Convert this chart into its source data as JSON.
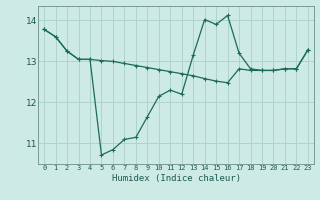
{
  "xlabel": "Humidex (Indice chaleur)",
  "background_color": "#ceeae4",
  "grid_color": "#aed4cc",
  "line_color": "#1a6b5a",
  "spine_color": "#7a9a94",
  "tick_color": "#1a5a50",
  "xlim": [
    -0.5,
    23.5
  ],
  "ylim": [
    10.5,
    14.35
  ],
  "yticks": [
    11,
    12,
    13,
    14
  ],
  "xticks": [
    0,
    1,
    2,
    3,
    4,
    5,
    6,
    7,
    8,
    9,
    10,
    11,
    12,
    13,
    14,
    15,
    16,
    17,
    18,
    19,
    20,
    21,
    22,
    23
  ],
  "line1_x": [
    0,
    1,
    2,
    3,
    4,
    5,
    6,
    7,
    8,
    9,
    10,
    11,
    12,
    13,
    14,
    15,
    16,
    17,
    18,
    19,
    20,
    21,
    22,
    23
  ],
  "line1_y": [
    13.78,
    13.6,
    13.25,
    13.05,
    13.05,
    10.72,
    10.85,
    11.1,
    11.15,
    11.65,
    12.15,
    12.3,
    12.2,
    13.15,
    14.02,
    13.9,
    14.12,
    13.2,
    12.82,
    12.78,
    12.78,
    12.82,
    12.82,
    13.28
  ],
  "line2_x": [
    0,
    1,
    2,
    3,
    4,
    5,
    6,
    7,
    8,
    9,
    10,
    11,
    12,
    13,
    14,
    15,
    16,
    17,
    18,
    19,
    20,
    21,
    22,
    23
  ],
  "line2_y": [
    13.78,
    13.6,
    13.25,
    13.05,
    13.05,
    13.02,
    13.0,
    12.95,
    12.9,
    12.85,
    12.8,
    12.75,
    12.7,
    12.65,
    12.58,
    12.52,
    12.48,
    12.82,
    12.78,
    12.78,
    12.78,
    12.82,
    12.82,
    13.28
  ]
}
